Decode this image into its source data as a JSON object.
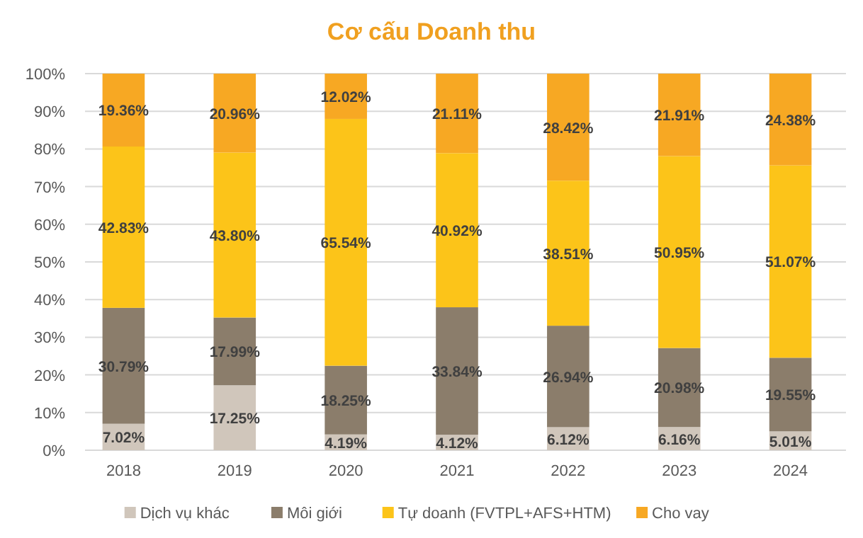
{
  "chart_data": {
    "type": "bar",
    "title": "Cơ cấu Doanh thu",
    "stacked": true,
    "categories": [
      "2018",
      "2019",
      "2020",
      "2021",
      "2022",
      "2023",
      "2024"
    ],
    "series": [
      {
        "name": "Dịch vụ khác",
        "color": "#d0c6bb",
        "values": [
          7.02,
          17.25,
          4.19,
          4.12,
          6.12,
          6.16,
          5.01
        ],
        "value_labels": [
          "7.02%",
          "17.25%",
          "4.19%",
          "4.12%",
          "6.12%",
          "6.16%",
          "5.01%"
        ]
      },
      {
        "name": "Môi giới",
        "color": "#8b7d6b",
        "values": [
          30.79,
          17.99,
          18.25,
          33.84,
          26.94,
          20.98,
          19.55
        ],
        "value_labels": [
          "30.79%",
          "17.99%",
          "18.25%",
          "33.84%",
          "26.94%",
          "20.98%",
          "19.55%"
        ]
      },
      {
        "name": "Tự doanh (FVTPL+AFS+HTM)",
        "color": "#fcc419",
        "values": [
          42.83,
          43.8,
          65.54,
          40.92,
          38.51,
          50.95,
          51.07
        ],
        "value_labels": [
          "42.83%",
          "43.80%",
          "65.54%",
          "40.92%",
          "38.51%",
          "50.95%",
          "51.07%"
        ]
      },
      {
        "name": "Cho vay",
        "color": "#f7a823",
        "values": [
          19.36,
          20.96,
          12.02,
          21.11,
          28.42,
          21.91,
          24.38
        ],
        "value_labels": [
          "19.36%",
          "20.96%",
          "12.02%",
          "21.11%",
          "28.42%",
          "21.91%",
          "24.38%"
        ]
      }
    ],
    "ylim": [
      0,
      100
    ],
    "yticks": [
      {
        "value": 0,
        "label": "0%"
      },
      {
        "value": 10,
        "label": "10%"
      },
      {
        "value": 20,
        "label": "20%"
      },
      {
        "value": 30,
        "label": "30%"
      },
      {
        "value": 40,
        "label": "40%"
      },
      {
        "value": 50,
        "label": "50%"
      },
      {
        "value": 60,
        "label": "60%"
      },
      {
        "value": 70,
        "label": "70%"
      },
      {
        "value": 80,
        "label": "80%"
      },
      {
        "value": 90,
        "label": "90%"
      },
      {
        "value": 100,
        "label": "100%"
      }
    ],
    "grid": "y",
    "legend": "bottom"
  }
}
